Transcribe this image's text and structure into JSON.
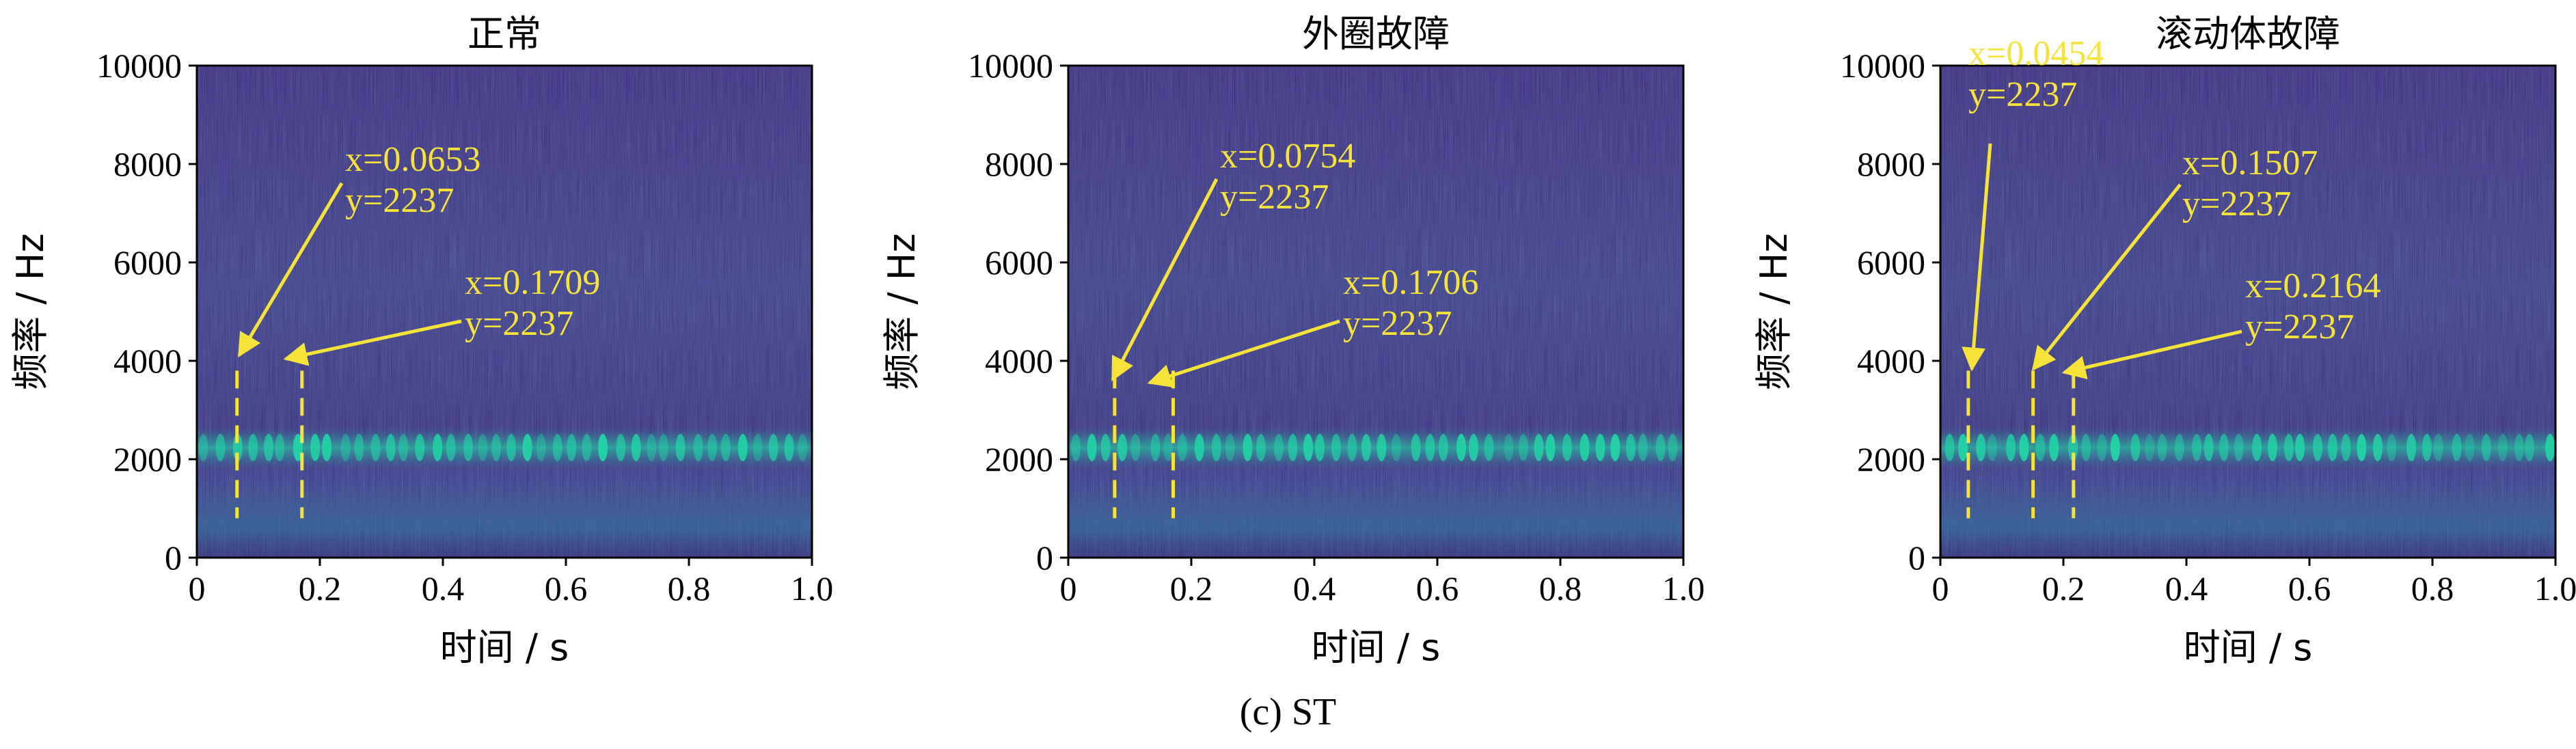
{
  "figure_caption": "(c) ST",
  "colors": {
    "spectrogram_background": "#3b2a7a",
    "band_highlight": "#22d4a6",
    "annotation": "#f5e33a",
    "axis": "#000000"
  },
  "chart_data": [
    {
      "type": "heatmap",
      "title": "正常",
      "xlabel": "时间 / s",
      "ylabel": "频率 / Hz",
      "xlim": [
        0,
        1.0
      ],
      "ylim": [
        0,
        10000
      ],
      "xticks": [
        "0",
        "0.2",
        "0.4",
        "0.6",
        "0.8",
        "1.0"
      ],
      "yticks": [
        "0",
        "2000",
        "4000",
        "6000",
        "8000",
        "10000"
      ],
      "colormap": "viridis",
      "dominant_band_hz": 2237,
      "annotations": [
        {
          "x": 0.0653,
          "y": 2237,
          "x_label": "x=0.0653",
          "y_label": "y=2237"
        },
        {
          "x": 0.1709,
          "y": 2237,
          "x_label": "x=0.1709",
          "y_label": "y=2237"
        }
      ]
    },
    {
      "type": "heatmap",
      "title": "外圈故障",
      "xlabel": "时间 / s",
      "ylabel": "频率 / Hz",
      "xlim": [
        0,
        1.0
      ],
      "ylim": [
        0,
        10000
      ],
      "xticks": [
        "0",
        "0.2",
        "0.4",
        "0.6",
        "0.8",
        "1.0"
      ],
      "yticks": [
        "0",
        "2000",
        "4000",
        "6000",
        "8000",
        "10000"
      ],
      "colormap": "viridis",
      "dominant_band_hz": 2237,
      "annotations": [
        {
          "x": 0.0754,
          "y": 2237,
          "x_label": "x=0.0754",
          "y_label": "y=2237"
        },
        {
          "x": 0.1706,
          "y": 2237,
          "x_label": "x=0.1706",
          "y_label": "y=2237"
        }
      ]
    },
    {
      "type": "heatmap",
      "title": "滚动体故障",
      "xlabel": "时间 / s",
      "ylabel": "频率 / Hz",
      "xlim": [
        0,
        1.0
      ],
      "ylim": [
        0,
        10000
      ],
      "xticks": [
        "0",
        "0.2",
        "0.4",
        "0.6",
        "0.8",
        "1.0"
      ],
      "yticks": [
        "0",
        "2000",
        "4000",
        "6000",
        "8000",
        "10000"
      ],
      "colormap": "viridis",
      "dominant_band_hz": 2237,
      "annotations": [
        {
          "x": 0.0454,
          "y": 2237,
          "x_label": "x=0.0454",
          "y_label": "y=2237"
        },
        {
          "x": 0.1507,
          "y": 2237,
          "x_label": "x=0.1507",
          "y_label": "y=2237"
        },
        {
          "x": 0.2164,
          "y": 2237,
          "x_label": "x=0.2164",
          "y_label": "y=2237"
        }
      ]
    }
  ]
}
